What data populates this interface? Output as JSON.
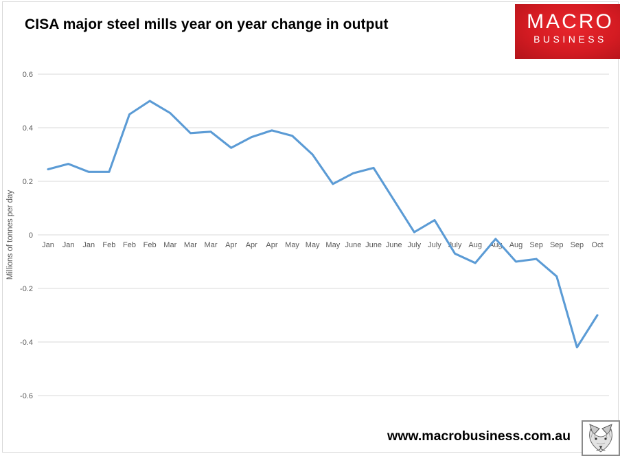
{
  "logo": {
    "line1": "MACRO",
    "line2": "BUSINESS",
    "bg_color": "#D41B22",
    "text_color": "#FFFFFF"
  },
  "footer": {
    "url": "www.macrobusiness.com.au",
    "fox_icon": "fox-head-sketch"
  },
  "chart_data": {
    "type": "line",
    "title": "CISA major steel mills year on year change in output",
    "xlabel": "",
    "ylabel": "Millions of tonnes per day",
    "categories": [
      "Jan",
      "Jan",
      "Jan",
      "Feb",
      "Feb",
      "Feb",
      "Mar",
      "Mar",
      "Mar",
      "Apr",
      "Apr",
      "Apr",
      "May",
      "May",
      "May",
      "June",
      "June",
      "June",
      "July",
      "July",
      "July",
      "Aug",
      "Aug",
      "Aug",
      "Sep",
      "Sep",
      "Sep",
      "Oct"
    ],
    "values": [
      0.245,
      0.265,
      0.235,
      0.235,
      0.45,
      0.5,
      0.455,
      0.38,
      0.385,
      0.325,
      0.365,
      0.39,
      0.37,
      0.3,
      0.19,
      0.23,
      0.25,
      0.13,
      0.01,
      0.055,
      -0.07,
      -0.105,
      -0.015,
      -0.1,
      -0.09,
      -0.155,
      -0.42,
      -0.3
    ],
    "series_name": "CISA major steel mills year on year change in output",
    "ylim": [
      -0.6,
      0.6
    ],
    "yticks": [
      0.6,
      0.4,
      0.2,
      0,
      -0.2,
      -0.4,
      -0.6
    ],
    "grid": true,
    "legend": false,
    "line_color": "#5B9BD5",
    "grid_color": "#D9D9D9",
    "tick_label_color": "#595959",
    "axis_title_color": "#595959"
  }
}
